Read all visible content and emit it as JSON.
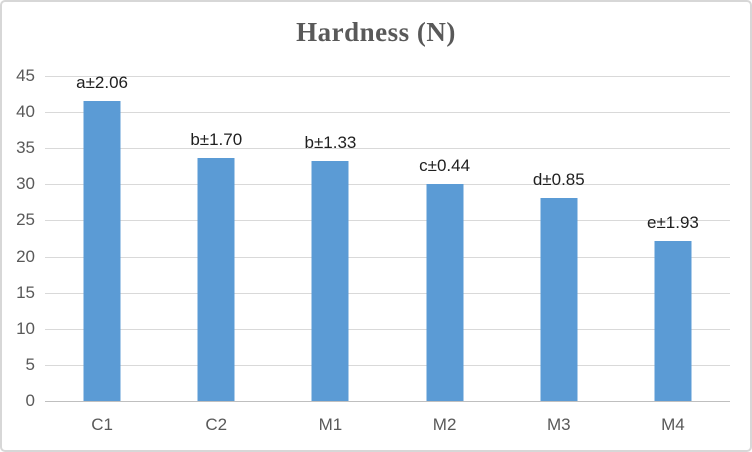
{
  "chart_data": {
    "type": "bar",
    "title": "Hardness (N)",
    "categories": [
      "C1",
      "C2",
      "M1",
      "M2",
      "M3",
      "M4"
    ],
    "values": [
      41.5,
      33.6,
      33.2,
      30.1,
      28.1,
      22.2
    ],
    "bar_labels": [
      "a±2.06",
      "b±1.70",
      "b±1.33",
      "c±0.44",
      "d±0.85",
      "e±1.93"
    ],
    "ylim": [
      0,
      45
    ],
    "y_ticks": [
      45,
      40,
      35,
      30,
      25,
      20,
      15,
      10,
      5,
      0
    ],
    "xlabel": "",
    "ylabel": "",
    "grid": true,
    "legend": false,
    "colors": {
      "bar": "#5B9BD5",
      "gridline": "#D9D9D9",
      "axis_line": "#BFBFBF",
      "title_text": "#595959",
      "tick_text": "#595959",
      "bar_label_text": "#1F1F1F",
      "frame_border": "#D7D7D7"
    }
  }
}
